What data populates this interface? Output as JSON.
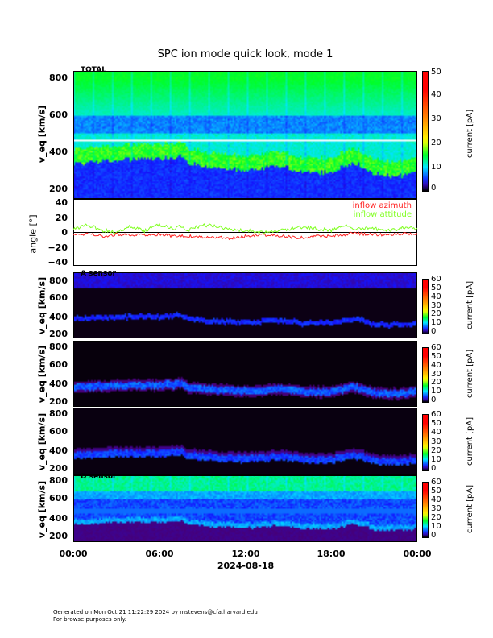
{
  "title": "SPC ion mode quick look, mode 1",
  "panels": {
    "total": {
      "label": "TOTAL",
      "ylabel": "v_eq [km/s]",
      "yticks": [
        "800",
        "600",
        "400",
        "200"
      ],
      "ylim": [
        148,
        840
      ]
    },
    "angle": {
      "ylabel": "angle [°]",
      "yticks": [
        "40",
        "20",
        "0",
        "−20",
        "−40"
      ],
      "ylim": [
        -45,
        45
      ],
      "legend": [
        "inflow azimuth",
        "inflow attitude"
      ],
      "legend_colors": [
        "#ff2020",
        "#80ff20"
      ]
    },
    "a": {
      "label": "A sensor",
      "ylabel": "v_eq [km/s]",
      "yticks": [
        "800",
        "600",
        "400",
        "200"
      ]
    },
    "b": {
      "label": "",
      "ylabel": "v_eq [km/s]",
      "yticks": [
        "800",
        "600",
        "400",
        "200"
      ]
    },
    "c": {
      "label": "",
      "ylabel": "v_eq [km/s]",
      "yticks": [
        "800",
        "600",
        "400",
        "200"
      ]
    },
    "d": {
      "label": "D sensor",
      "ylabel": "v_eq [km/s]",
      "yticks": [
        "800",
        "600",
        "400",
        "200"
      ]
    }
  },
  "colorbars": {
    "total": {
      "label": "current [pA]",
      "ticks": [
        "50",
        "40",
        "30",
        "20",
        "10",
        "0"
      ],
      "range": [
        0,
        50
      ]
    },
    "sensor": {
      "label": "current [pA]",
      "ticks": [
        "60",
        "50",
        "40",
        "30",
        "20",
        "10",
        "0"
      ],
      "range": [
        0,
        60
      ]
    }
  },
  "xaxis": {
    "ticks": [
      "00:00",
      "06:00",
      "12:00",
      "18:00",
      "00:00"
    ],
    "date": "2024-08-18"
  },
  "footer": [
    "Generated on Mon Oct 21 11:22:29 2024 by mstevens@cfa.harvard.edu",
    "For browse purposes only."
  ],
  "chart_data": {
    "type": "heatmap",
    "title": "SPC ion mode quick look, mode 1",
    "xlabel": "2024-08-18",
    "x_hours": [
      0,
      1,
      2,
      3,
      4,
      5,
      6,
      7,
      7.5,
      8,
      9,
      10,
      11,
      12,
      13,
      14,
      15,
      16,
      17,
      18,
      19,
      19.5,
      20,
      21,
      22,
      23,
      24
    ],
    "proton_core_speed_kms": [
      380,
      385,
      390,
      395,
      400,
      400,
      400,
      410,
      420,
      380,
      365,
      350,
      345,
      340,
      345,
      360,
      355,
      330,
      330,
      330,
      360,
      380,
      370,
      320,
      310,
      310,
      330
    ],
    "inflow_azimuth_deg": [
      -3,
      -2,
      -5,
      -3,
      -3,
      -4,
      -3,
      -5,
      -4,
      -5,
      -6,
      -6,
      -8,
      -5,
      -3,
      -4,
      -6,
      -7,
      -5,
      -5,
      -3,
      0,
      -2,
      -3,
      -3,
      -2,
      -2
    ],
    "inflow_attitude_deg": [
      5,
      10,
      3,
      0,
      8,
      2,
      10,
      5,
      8,
      2,
      10,
      8,
      3,
      3,
      0,
      2,
      5,
      7,
      5,
      3,
      10,
      6,
      5,
      5,
      3,
      6,
      5
    ],
    "ylabel": "v_eq [km/s]",
    "colorbar_label": "current [pA]"
  }
}
